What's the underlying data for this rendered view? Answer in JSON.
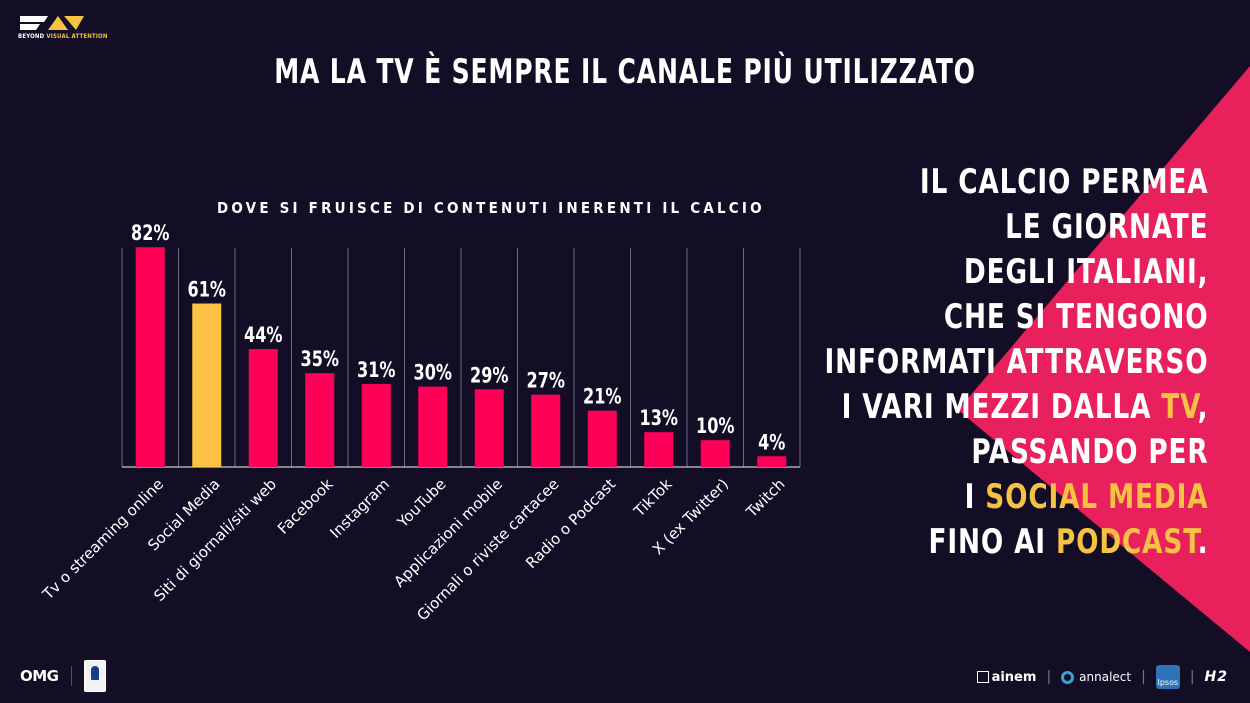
{
  "brand": {
    "logo_tag_a": "BEYOND ",
    "logo_tag_b": "VISUAL ATTENTION"
  },
  "title": "MA LA TV È SEMPRE IL CANALE PIÙ UTILIZZATO",
  "colors": {
    "background": "#130d26",
    "bar": "#ff0059",
    "bar_highlight": "#fcc246",
    "triangle": "#e8215c",
    "text_highlight": "#f5c242"
  },
  "chart_data": {
    "type": "bar",
    "title": "DOVE SI FRUISCE DI CONTENUTI INERENTI IL CALCIO",
    "categories": [
      "Tv o streaming online",
      "Social Media",
      "Siti di giornali/siti web",
      "Facebook",
      "Instagram",
      "YouTube",
      "Applicazioni mobile",
      "Giornali o riviste cartacee",
      "Radio o Podcast",
      "TikTok",
      "X (ex Twitter)",
      "Twitch"
    ],
    "values": [
      82,
      61,
      44,
      35,
      31,
      30,
      29,
      27,
      21,
      13,
      10,
      4
    ],
    "value_labels": [
      "82%",
      "61%",
      "44%",
      "35%",
      "31%",
      "30%",
      "29%",
      "27%",
      "21%",
      "13%",
      "10%",
      "4%"
    ],
    "highlight_index": 1,
    "ylim": [
      0,
      100
    ],
    "grid": "vertical separators"
  },
  "side_text": [
    [
      {
        "t": "IL CALCIO PERMEA"
      }
    ],
    [
      {
        "t": "LE GIORNATE"
      }
    ],
    [
      {
        "t": "DEGLI ITALIANI,"
      }
    ],
    [
      {
        "t": "CHE SI TENGONO"
      }
    ],
    [
      {
        "t": "INFORMATI ATTRAVERSO"
      }
    ],
    [
      {
        "t": "I VARI MEZZI DALLA "
      },
      {
        "t": "TV",
        "hl": true
      },
      {
        "t": ","
      }
    ],
    [
      {
        "t": "PASSANDO PER"
      }
    ],
    [
      {
        "t": "I "
      },
      {
        "t": "SOCIAL MEDIA",
        "hl": true
      }
    ],
    [
      {
        "t": "FINO AI "
      },
      {
        "t": "PODCAST",
        "hl": true
      },
      {
        "t": "."
      }
    ]
  ],
  "footer": {
    "omg": "OMG",
    "serie_a": "SERIE A",
    "ainem": "ainem",
    "annalect": "annalect",
    "ipsos": "Ipsos",
    "h2": "H2"
  }
}
